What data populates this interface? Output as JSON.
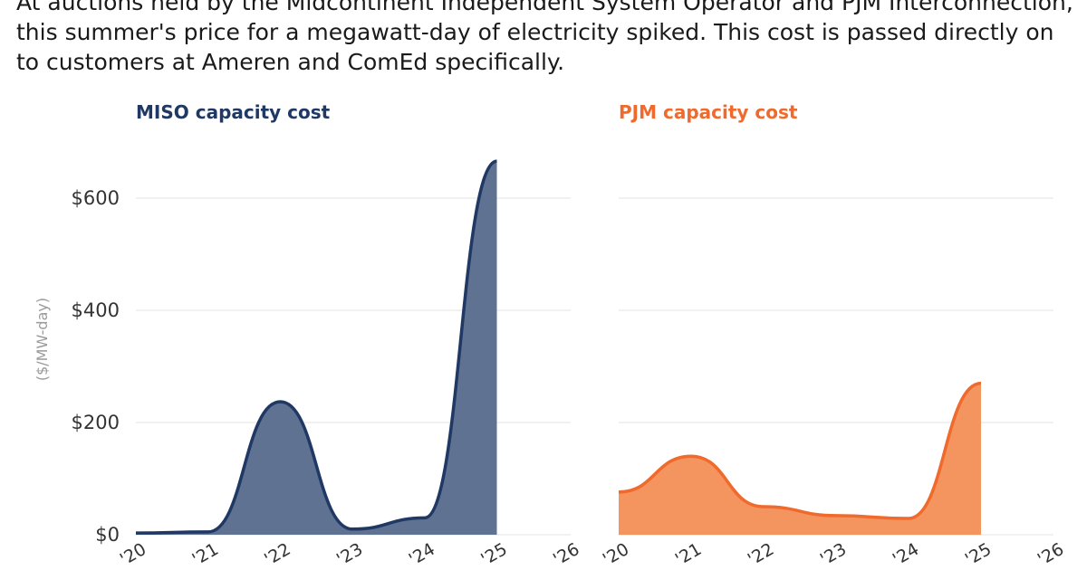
{
  "caption": "At auctions held by the Midcontinent Independent System Operator and PJM Interconnection, this summer's price for a megawatt-day of electricity spiked. This cost is passed directly on to customers at Ameren and ComEd specifically.",
  "chart_data": [
    {
      "type": "area",
      "title": "MISO capacity cost",
      "ylabel": "($/MW-day)",
      "x": [
        "'20",
        "'21",
        "'22",
        "'23",
        "'24",
        "'25"
      ],
      "xticks": [
        "'20",
        "'21",
        "'22",
        "'23",
        "'24",
        "'25",
        "'26"
      ],
      "values": [
        3,
        5,
        237,
        10,
        30,
        666
      ],
      "yticks": [
        "$0",
        "$200",
        "$400",
        "$600"
      ],
      "ytick_values": [
        0,
        200,
        400,
        600
      ],
      "ylim": [
        0,
        700
      ],
      "grid": true,
      "color": "#1f3864",
      "fill": "#5f7292"
    },
    {
      "type": "area",
      "title": "PJM capacity cost",
      "x": [
        "'20",
        "'21",
        "'22",
        "'23",
        "'24",
        "'25"
      ],
      "xticks": [
        "'20",
        "'21",
        "'22",
        "'23",
        "'24",
        "'25",
        "'26"
      ],
      "values": [
        76,
        140,
        50,
        34,
        29,
        270
      ],
      "ytick_values": [
        0,
        200,
        400,
        600
      ],
      "ylim": [
        0,
        700
      ],
      "grid": true,
      "color": "#ef6a2c",
      "fill": "#f4945f"
    }
  ]
}
